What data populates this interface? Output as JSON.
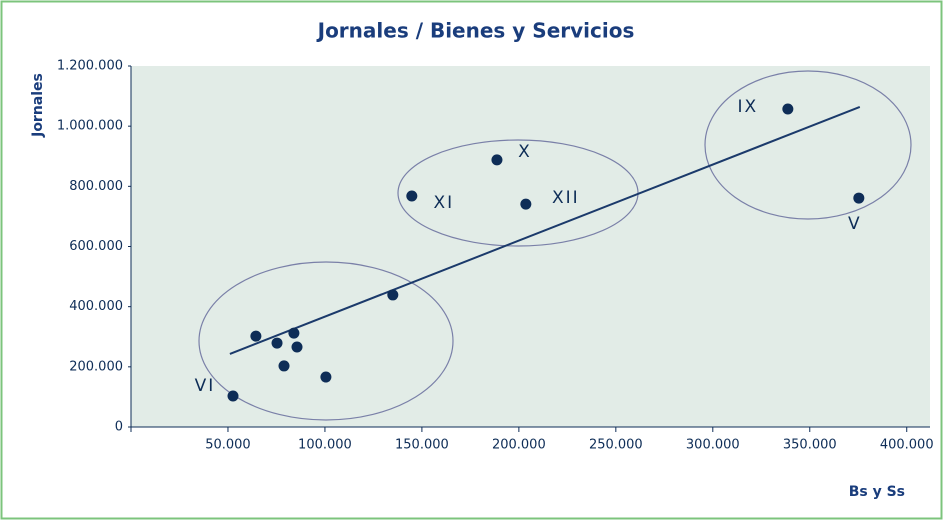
{
  "chart_data": {
    "type": "scatter",
    "title": "Jornales / Bienes y Servicios",
    "xlabel": "Bs y Ss",
    "ylabel": "Jornales",
    "x": [
      52600,
      64400,
      75300,
      84000,
      85600,
      78900,
      100500,
      135000,
      144800,
      188700,
      203600,
      338700,
      375300
    ],
    "values": [
      103000,
      302000,
      279000,
      312000,
      266000,
      203000,
      166000,
      439000,
      768000,
      888000,
      741000,
      1057000,
      761000
    ],
    "point_labels": [
      "VI",
      null,
      null,
      null,
      null,
      null,
      null,
      null,
      "XI",
      "X",
      "XII",
      "IX",
      "V"
    ],
    "color": "#0e2d57",
    "trendline": {
      "x": [
        51000,
        375800
      ],
      "values": [
        243000,
        1064000
      ],
      "color": "#1b3a6b"
    },
    "xlim": [
      0,
      412000
    ],
    "xticks": [
      {
        "value": 50000,
        "label": "50.000"
      },
      {
        "value": 100000,
        "label": "100.000"
      },
      {
        "value": 150000,
        "label": "150.000"
      },
      {
        "value": 200000,
        "label": "200.000"
      },
      {
        "value": 250000,
        "label": "250.000"
      },
      {
        "value": 300000,
        "label": "300.000"
      },
      {
        "value": 350000,
        "label": "350.000"
      },
      {
        "value": 400000,
        "label": "400.000"
      }
    ],
    "ylim": [
      0,
      1200000
    ],
    "yticks": [
      0,
      {
        "value": 200000,
        "label": "200.000"
      },
      {
        "value": 400000,
        "label": "400.000"
      },
      {
        "value": 600000,
        "label": "600.000"
      },
      {
        "value": 800000,
        "label": "800.000"
      },
      {
        "value": 1000000,
        "label": "1.000.000"
      },
      {
        "value": 1200000,
        "label": "1.200.000"
      }
    ]
  }
}
